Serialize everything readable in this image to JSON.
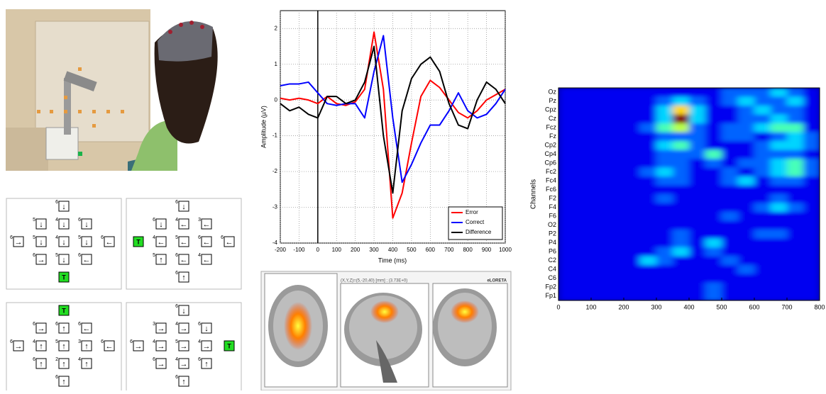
{
  "chart_data": [
    {
      "type": "line",
      "xlabel": "Time (ms)",
      "ylabel": "Amplitude (µV)",
      "x": [
        -200,
        -150,
        -100,
        -50,
        0,
        50,
        100,
        150,
        200,
        250,
        300,
        350,
        400,
        450,
        500,
        550,
        600,
        650,
        700,
        750,
        800,
        850,
        900,
        950,
        1000
      ],
      "series": [
        {
          "name": "Error",
          "color": "#ff0000",
          "values": [
            0.05,
            0.0,
            0.05,
            0.0,
            -0.1,
            0.1,
            -0.1,
            -0.15,
            -0.05,
            0.3,
            1.9,
            0.3,
            -3.3,
            -2.6,
            -1.2,
            0.1,
            0.55,
            0.35,
            0.0,
            -0.35,
            -0.5,
            -0.3,
            0.0,
            0.15,
            0.3
          ]
        },
        {
          "name": "Correct",
          "color": "#0000ff",
          "values": [
            0.4,
            0.45,
            0.45,
            0.5,
            0.2,
            -0.1,
            -0.15,
            -0.1,
            -0.1,
            -0.5,
            0.8,
            1.8,
            -0.5,
            -2.3,
            -1.8,
            -1.2,
            -0.7,
            -0.7,
            -0.3,
            0.2,
            -0.3,
            -0.5,
            -0.4,
            -0.1,
            0.3
          ]
        },
        {
          "name": "Difference",
          "color": "#000000",
          "values": [
            -0.1,
            -0.3,
            -0.2,
            -0.4,
            -0.5,
            0.1,
            0.1,
            -0.1,
            0.0,
            0.5,
            1.5,
            -1.0,
            -2.6,
            -0.3,
            0.6,
            1.0,
            1.2,
            0.8,
            -0.1,
            -0.7,
            -0.8,
            0.0,
            0.5,
            0.3,
            -0.1
          ]
        }
      ],
      "xlim": [
        -200,
        1000
      ],
      "xticks": [
        -200,
        -100,
        0,
        100,
        200,
        300,
        400,
        500,
        600,
        700,
        800,
        900,
        1000
      ],
      "ylim": [
        -4,
        2.5
      ],
      "yticks": [
        -4,
        -3,
        -2,
        -1,
        0,
        1,
        2
      ],
      "grid": true,
      "legend": "lower-right"
    },
    {
      "type": "heatmap",
      "ylabel": "Channels",
      "categories": [
        "Oz",
        "Pz",
        "Cpz",
        "Cz",
        "Fcz",
        "Fz",
        "Cp2",
        "Cp4",
        "Cp6",
        "Fc2",
        "Fc4",
        "Fc6",
        "F2",
        "F4",
        "F6",
        "O2",
        "P2",
        "P4",
        "P6",
        "C2",
        "C4",
        "C6",
        "Fp2",
        "Fp1"
      ],
      "values": [
        [
          1,
          1,
          1,
          1,
          1,
          1,
          1,
          1,
          1,
          1,
          2,
          2,
          2,
          3,
          2,
          1
        ],
        [
          1,
          1,
          1,
          1,
          1,
          1,
          2,
          3,
          2,
          1,
          2,
          3,
          2,
          2,
          3,
          1
        ],
        [
          1,
          1,
          1,
          1,
          1,
          1,
          3,
          6,
          3,
          1,
          1,
          2,
          3,
          2,
          2,
          1
        ],
        [
          1,
          1,
          1,
          1,
          1,
          1,
          3,
          9,
          3,
          1,
          1,
          2,
          2,
          3,
          2,
          1
        ],
        [
          1,
          1,
          1,
          1,
          1,
          2,
          4,
          5,
          2,
          1,
          2,
          2,
          3,
          4,
          4,
          1
        ],
        [
          1,
          1,
          1,
          1,
          1,
          1,
          2,
          2,
          2,
          1,
          2,
          2,
          1,
          2,
          3,
          2
        ],
        [
          1,
          1,
          1,
          1,
          1,
          1,
          3,
          4,
          2,
          1,
          1,
          1,
          2,
          3,
          3,
          2
        ],
        [
          1,
          1,
          1,
          1,
          1,
          1,
          2,
          2,
          2,
          4,
          1,
          1,
          2,
          2,
          2,
          1
        ],
        [
          1,
          1,
          1,
          1,
          1,
          1,
          2,
          2,
          1,
          2,
          1,
          2,
          2,
          3,
          4,
          2
        ],
        [
          1,
          1,
          1,
          1,
          1,
          2,
          3,
          2,
          1,
          1,
          2,
          1,
          2,
          3,
          4,
          2
        ],
        [
          1,
          1,
          1,
          1,
          1,
          1,
          2,
          2,
          1,
          1,
          2,
          3,
          1,
          2,
          2,
          1
        ],
        [
          1,
          1,
          1,
          1,
          1,
          1,
          1,
          1,
          1,
          1,
          1,
          1,
          1,
          1,
          1,
          1
        ],
        [
          1,
          1,
          1,
          1,
          1,
          1,
          2,
          1,
          1,
          1,
          1,
          1,
          1,
          2,
          1,
          1
        ],
        [
          1,
          1,
          1,
          1,
          1,
          1,
          1,
          1,
          1,
          1,
          1,
          1,
          2,
          3,
          2,
          1
        ],
        [
          1,
          1,
          1,
          1,
          1,
          1,
          1,
          1,
          1,
          1,
          2,
          1,
          1,
          1,
          1,
          1
        ],
        [
          1,
          1,
          1,
          1,
          1,
          1,
          1,
          1,
          1,
          1,
          1,
          1,
          1,
          1,
          1,
          1
        ],
        [
          1,
          1,
          1,
          1,
          1,
          1,
          1,
          2,
          1,
          1,
          1,
          1,
          2,
          2,
          1,
          1
        ],
        [
          1,
          1,
          1,
          1,
          1,
          1,
          1,
          2,
          1,
          3,
          1,
          1,
          1,
          1,
          1,
          1
        ],
        [
          1,
          1,
          1,
          1,
          1,
          1,
          2,
          3,
          1,
          2,
          1,
          1,
          1,
          1,
          1,
          1
        ],
        [
          1,
          1,
          1,
          1,
          1,
          3,
          2,
          1,
          1,
          1,
          2,
          1,
          1,
          1,
          1,
          1
        ],
        [
          1,
          1,
          1,
          1,
          1,
          1,
          1,
          1,
          1,
          1,
          1,
          2,
          1,
          1,
          1,
          1
        ],
        [
          1,
          1,
          1,
          1,
          1,
          1,
          1,
          1,
          1,
          1,
          1,
          1,
          1,
          1,
          1,
          1
        ],
        [
          1,
          1,
          1,
          1,
          1,
          1,
          1,
          1,
          1,
          2,
          1,
          1,
          1,
          1,
          1,
          1
        ],
        [
          1,
          1,
          1,
          1,
          1,
          1,
          1,
          1,
          1,
          2,
          1,
          1,
          1,
          1,
          1,
          1
        ]
      ],
      "xlim": [
        0,
        800
      ],
      "xticks": [
        0,
        100,
        200,
        300,
        400,
        500,
        600,
        700,
        800
      ],
      "zlim": [
        0,
        9
      ]
    }
  ],
  "panels": [
    [
      [
        null,
        null,
        {
          "num": "6",
          "arrow": "↓"
        },
        null,
        null
      ],
      [
        null,
        {
          "num": "5",
          "arrow": "↓"
        },
        {
          "num": "4",
          "arrow": "↓"
        },
        {
          "num": "6",
          "arrow": "↓"
        },
        null
      ],
      [
        {
          "num": "6",
          "arrow": "→"
        },
        {
          "num": "5",
          "arrow": "↓"
        },
        {
          "num": "4",
          "arrow": "↓"
        },
        {
          "num": "5",
          "arrow": "↓"
        },
        {
          "num": "6",
          "arrow": "←"
        }
      ],
      [
        null,
        {
          "num": "6",
          "arrow": "→"
        },
        {
          "num": "5",
          "arrow": "↓"
        },
        {
          "num": "6",
          "arrow": "←"
        },
        null
      ],
      [
        null,
        null,
        "T",
        null,
        null
      ]
    ],
    [
      [
        null,
        null,
        {
          "num": "6",
          "arrow": "↓"
        },
        null,
        null
      ],
      [
        null,
        {
          "num": "6",
          "arrow": "↓"
        },
        {
          "num": "4",
          "arrow": "←"
        },
        {
          "num": "3",
          "arrow": "←"
        },
        null
      ],
      [
        "T",
        {
          "num": "4",
          "arrow": "←"
        },
        {
          "num": "5",
          "arrow": "←"
        },
        {
          "num": "6",
          "arrow": "←"
        },
        {
          "num": "6",
          "arrow": "←"
        }
      ],
      [
        null,
        {
          "num": "5",
          "arrow": "↑"
        },
        {
          "num": "6",
          "arrow": "←"
        },
        {
          "num": "4",
          "arrow": "←"
        },
        null
      ],
      [
        null,
        null,
        {
          "num": "6",
          "arrow": "↑"
        },
        null,
        null
      ]
    ],
    [
      [
        null,
        null,
        "T",
        null,
        null
      ],
      [
        null,
        {
          "num": "6",
          "arrow": "→"
        },
        {
          "num": "6",
          "arrow": "↑"
        },
        {
          "num": "6",
          "arrow": "←"
        },
        null
      ],
      [
        {
          "num": "6",
          "arrow": "→"
        },
        {
          "num": "4",
          "arrow": "↑"
        },
        {
          "num": "5",
          "arrow": "↑"
        },
        {
          "num": "3",
          "arrow": "↑"
        },
        {
          "num": "6",
          "arrow": "←"
        }
      ],
      [
        null,
        {
          "num": "6",
          "arrow": "↑"
        },
        {
          "num": "2",
          "arrow": "↑"
        },
        {
          "num": "4",
          "arrow": "↑"
        },
        null
      ],
      [
        null,
        null,
        {
          "num": "6",
          "arrow": "↑"
        },
        null,
        null
      ]
    ],
    [
      [
        null,
        null,
        {
          "num": "6",
          "arrow": "↓"
        },
        null,
        null
      ],
      [
        null,
        {
          "num": "3",
          "arrow": "→"
        },
        {
          "num": "4",
          "arrow": "→"
        },
        {
          "num": "6",
          "arrow": "↓"
        },
        null
      ],
      [
        {
          "num": "6",
          "arrow": "→"
        },
        {
          "num": "4",
          "arrow": "→"
        },
        {
          "num": "5",
          "arrow": "→"
        },
        {
          "num": "4",
          "arrow": "→"
        },
        "T"
      ],
      [
        null,
        {
          "num": "6",
          "arrow": "→"
        },
        {
          "num": "4",
          "arrow": "→"
        },
        {
          "num": "6",
          "arrow": "↑"
        },
        null
      ],
      [
        null,
        null,
        {
          "num": "6",
          "arrow": "↑"
        },
        null,
        null
      ]
    ]
  ],
  "brain": {
    "coords": "(X,Y,Z)=(5,-20,40) [mm] ; (3.73E+0)",
    "method": "eLORETA"
  }
}
